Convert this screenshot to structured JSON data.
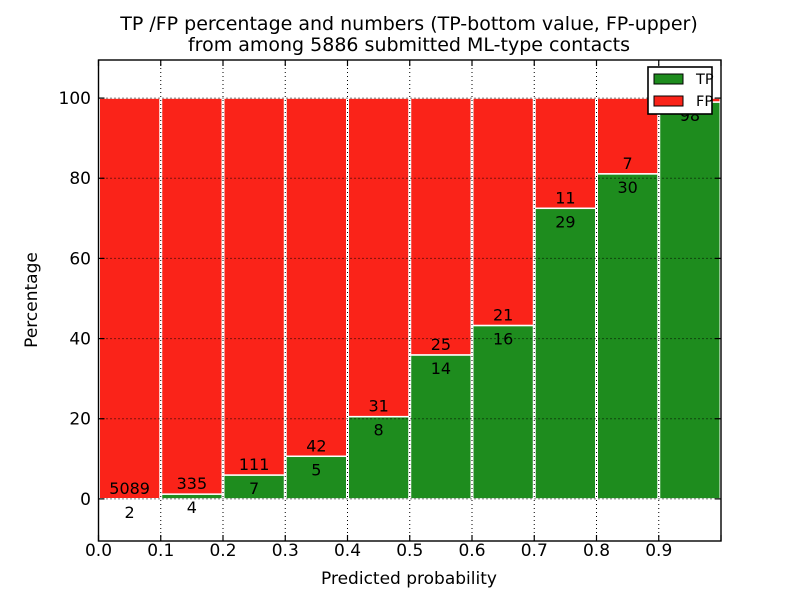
{
  "title": {
    "line1": "TP /FP percentage and numbers (TP-bottom value, FP-upper)",
    "line2": "from among 5886 submitted ML-type contacts"
  },
  "axes": {
    "xlabel": "Predicted probability",
    "ylabel": "Percentage"
  },
  "legend": {
    "position": "upper right",
    "entries": [
      {
        "label": "TP",
        "color": "#1e8c1e"
      },
      {
        "label": "FP",
        "color": "#fa2319"
      }
    ]
  },
  "colors": {
    "tp_green": "#1e8c1e",
    "fp_red": "#fa2319",
    "bar_edge": "#ffffff",
    "grid": "#000000",
    "background": "#ffffff"
  },
  "chart_data": {
    "type": "bar",
    "stacked": true,
    "title": "TP /FP percentage and numbers (TP-bottom value, FP-upper) from among 5886 submitted ML-type contacts",
    "xlabel": "Predicted probability",
    "ylabel": "Percentage",
    "total_contacts": 5886,
    "bin_edges": [
      0.0,
      0.1,
      0.2,
      0.3,
      0.4,
      0.5,
      0.6,
      0.7,
      0.8,
      0.9,
      1.0
    ],
    "series": [
      {
        "name": "TP",
        "color": "#1e8c1e",
        "counts": [
          2,
          4,
          7,
          5,
          8,
          14,
          16,
          29,
          30,
          98
        ]
      },
      {
        "name": "FP",
        "color": "#fa2319",
        "counts": [
          5089,
          335,
          111,
          42,
          31,
          25,
          21,
          11,
          7,
          1
        ]
      }
    ],
    "tp_percent": [
      0.04,
      1.18,
      5.93,
      10.64,
      20.51,
      35.9,
      43.24,
      72.5,
      81.08,
      98.99
    ],
    "xticks": {
      "values": [
        0.0,
        0.1,
        0.2,
        0.3,
        0.4,
        0.5,
        0.6,
        0.7,
        0.8,
        0.9,
        1.0
      ],
      "labels": [
        "0.0",
        "0.1",
        "0.2",
        "0.3",
        "0.4",
        "0.5",
        "0.6",
        "0.7",
        "0.8",
        "0.9",
        ""
      ]
    },
    "yticks": [
      0,
      20,
      40,
      60,
      80,
      100
    ],
    "xlim": [
      0.0,
      1.0
    ],
    "ylim": [
      -10.5,
      109.5
    ],
    "grid": true,
    "grid_style": "dotted",
    "bar_edge_color": "#ffffff",
    "legend_position": "upper right"
  }
}
